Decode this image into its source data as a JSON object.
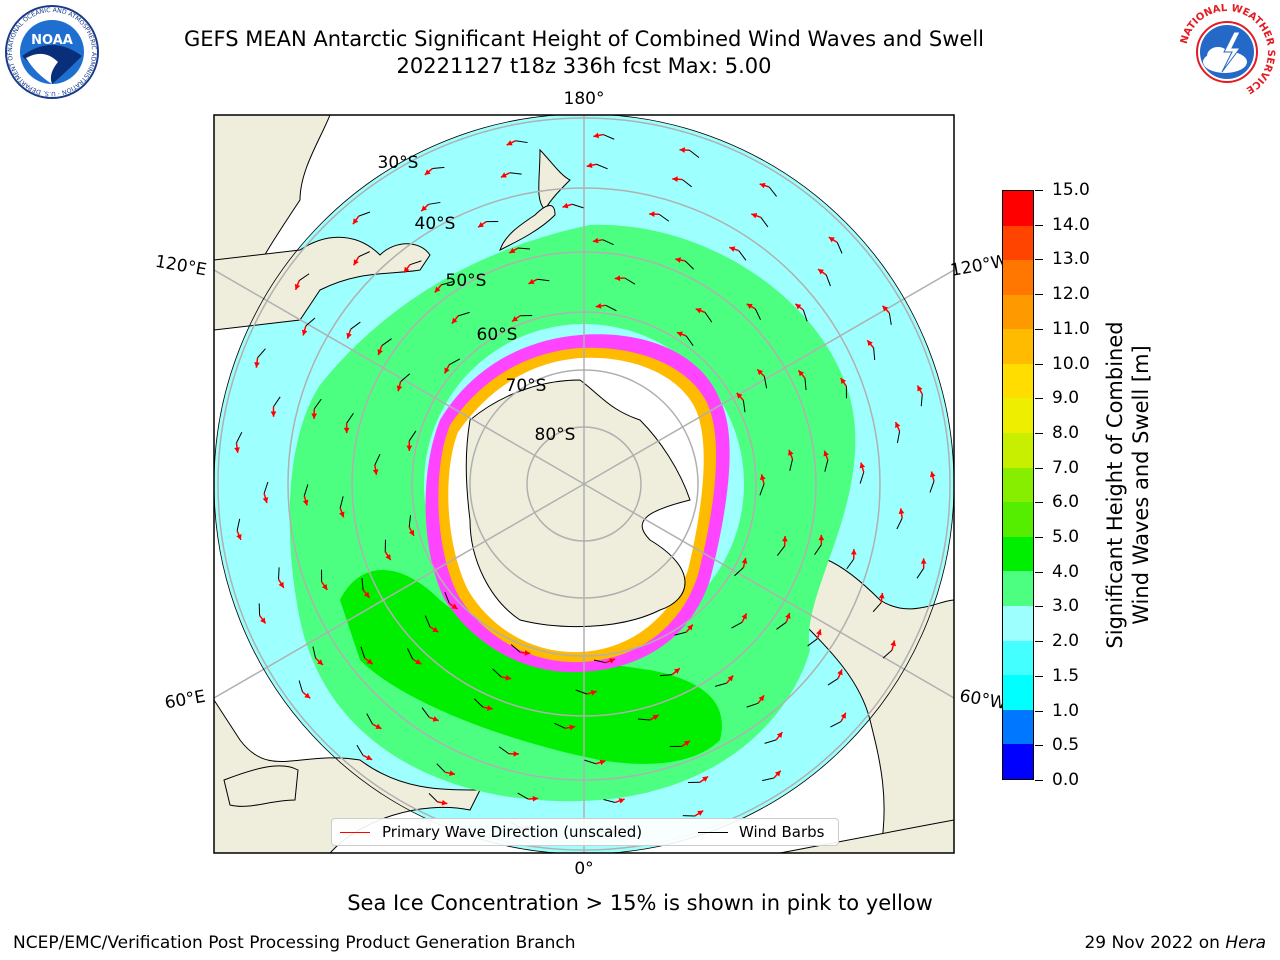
{
  "header": {
    "title_line1": "GEFS MEAN Antarctic Significant Height of Combined Wind Waves and Swell",
    "title_line2": "20221127 t18z 336h fcst   Max: 5.00",
    "noaa_logo_text": "NOAA",
    "noaa_ring_text": "NATIONAL OCEANIC AND ATMOSPHERIC ADMINISTRATION · U.S. DEPARTMENT OF COMMERCE",
    "nws_ring_text": "NATIONAL WEATHER SERVICE"
  },
  "map": {
    "projection": "south-polar-stereographic",
    "longitude_labels": [
      {
        "text": "180°",
        "lon": 180
      },
      {
        "text": "120°E",
        "lon": 120
      },
      {
        "text": "120°W",
        "lon": -120
      },
      {
        "text": "60°E",
        "lon": 60
      },
      {
        "text": "60°W",
        "lon": -60
      },
      {
        "text": "0°",
        "lon": 0
      }
    ],
    "latitude_labels": [
      "30°S",
      "40°S",
      "50°S",
      "60°S",
      "70°S",
      "80°S"
    ],
    "legend": {
      "wave_label": "Primary Wave Direction (unscaled)",
      "wave_color": "#ff0000",
      "wind_label": "Wind Barbs",
      "wind_color": "#000000"
    },
    "colors": {
      "land": "#efeedd",
      "ocean_low": "#9effff",
      "ocean_mid": "#4dff80",
      "ocean_high": "#00ee00",
      "sea_ice": "#ff44ff"
    }
  },
  "colorbar": {
    "label_line1": "Significant Height of Combined",
    "label_line2": "Wind Waves and Swell [m]",
    "ticks": [
      "0.0",
      "0.5",
      "1.0",
      "1.5",
      "2.0",
      "3.0",
      "4.0",
      "5.0",
      "6.0",
      "7.0",
      "8.0",
      "9.0",
      "10.0",
      "11.0",
      "12.0",
      "13.0",
      "14.0",
      "15.0"
    ],
    "colors": [
      "#0000ff",
      "#0077ff",
      "#00ffff",
      "#44ffff",
      "#9effff",
      "#4dff80",
      "#00ee00",
      "#55ee00",
      "#88ee00",
      "#c8ee00",
      "#eeee00",
      "#ffdd00",
      "#ffbb00",
      "#ff9900",
      "#ff7700",
      "#ff4400",
      "#ff0000"
    ]
  },
  "caption": "Sea Ice Concentration > 15% is shown in pink to yellow",
  "footer": {
    "left": "NCEP/EMC/Verification Post Processing Product Generation Branch",
    "right_prefix": "29 Nov 2022 on ",
    "right_host": "Hera"
  }
}
